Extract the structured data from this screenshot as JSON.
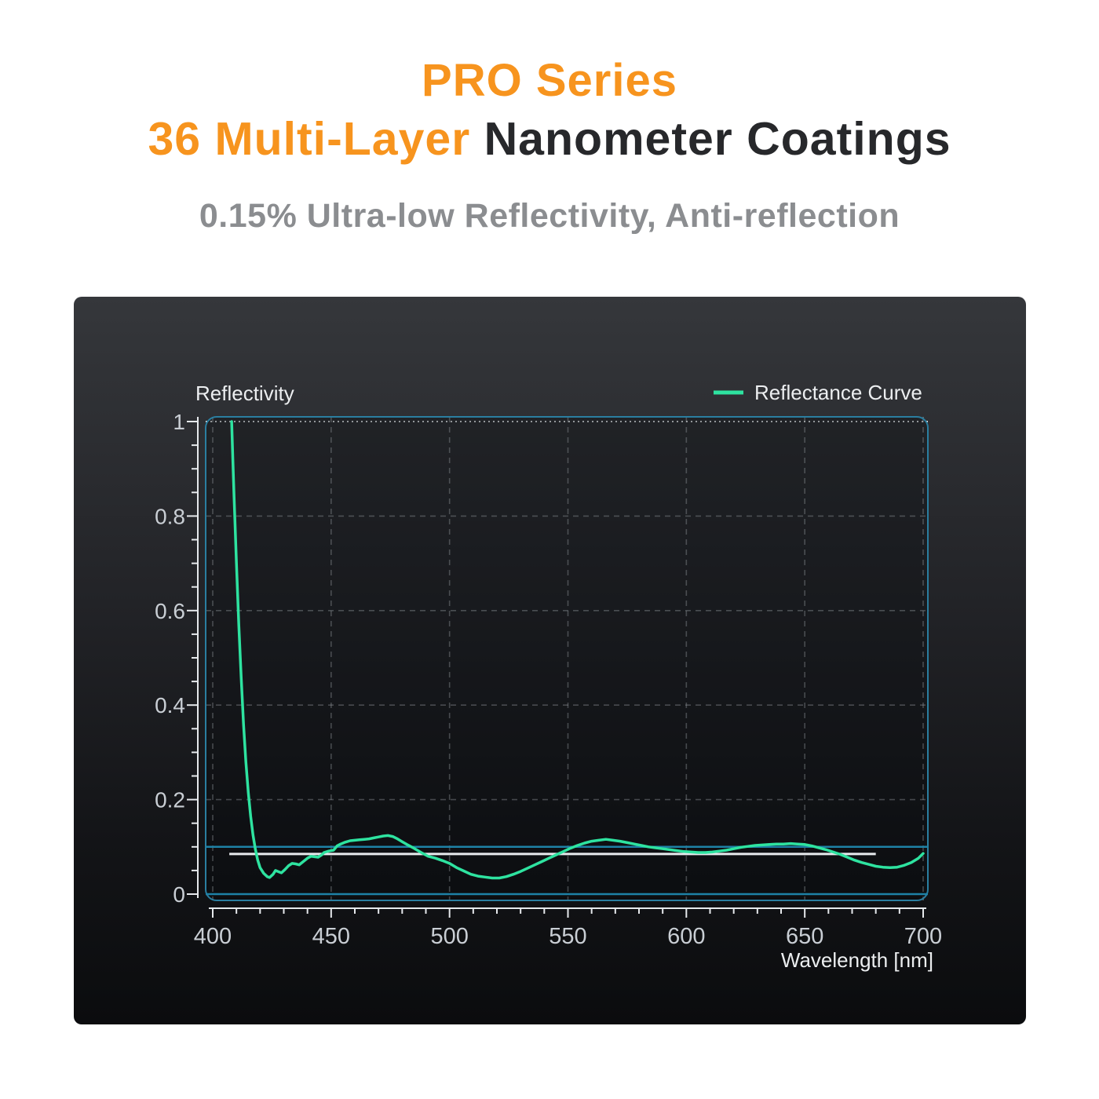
{
  "header": {
    "title_line1": "PRO Series",
    "title_line2_highlight": "36 Multi-Layer",
    "title_line2_rest": " Nanometer Coatings",
    "subtitle": "0.15% Ultra-low Reflectivity, Anti-reflection",
    "accent_color": "#f7941e",
    "dark_text_color": "#27282b",
    "subtitle_color": "#8b8d90"
  },
  "chart_data": {
    "type": "line",
    "title": "",
    "xlabel": "Wavelength [nm]",
    "ylabel": "Reflectivity",
    "xlim": [
      400,
      700
    ],
    "ylim": [
      0,
      1
    ],
    "grid": "dashed",
    "x_major_ticks": [
      400,
      450,
      500,
      550,
      600,
      650,
      700
    ],
    "x_minor_step": 10,
    "y_major_ticks": [
      0,
      0.2,
      0.4,
      0.6,
      0.8,
      1
    ],
    "y_tick_labels": [
      "0",
      "0.2",
      "0.4",
      "0.6",
      "0.8",
      "1"
    ],
    "y_minor_step": 0.05,
    "horizontal_dashed_gridlines": [
      0.2,
      0.4,
      0.6,
      0.8
    ],
    "dotted_gridlines": [
      1
    ],
    "legend": [
      {
        "label": "Reflectance Curve",
        "color": "#2ee3a0",
        "position": "top-right"
      }
    ],
    "colors": {
      "curve": "#2ee3a0",
      "frame": "#2a7ea0",
      "reference_cyan": "#1e81a6",
      "reference_white": "#e8ebee",
      "panel_top": "#35373b",
      "panel_bottom": "#0b0c0e"
    },
    "reference_lines": [
      {
        "y": 0.1,
        "color": "#1e81a6",
        "span": "frame"
      },
      {
        "y": 0.0,
        "color": "#1e81a6",
        "span": "frame"
      },
      {
        "y": 0.085,
        "color": "#e8ebee",
        "x_from": 407,
        "x_to": 680
      }
    ],
    "series": [
      {
        "name": "Reflectance Curve",
        "color": "#2ee3a0",
        "points": [
          [
            408,
            1.0
          ],
          [
            408.5,
            0.92
          ],
          [
            409,
            0.84
          ],
          [
            410,
            0.7
          ],
          [
            411,
            0.57
          ],
          [
            412,
            0.46
          ],
          [
            413,
            0.36
          ],
          [
            414,
            0.28
          ],
          [
            415,
            0.215
          ],
          [
            416,
            0.165
          ],
          [
            417,
            0.125
          ],
          [
            418,
            0.095
          ],
          [
            419,
            0.072
          ],
          [
            420,
            0.056
          ],
          [
            421.5,
            0.044
          ],
          [
            423,
            0.037
          ],
          [
            424,
            0.035
          ],
          [
            425.5,
            0.042
          ],
          [
            426.5,
            0.05
          ],
          [
            428,
            0.047
          ],
          [
            429,
            0.045
          ],
          [
            430.5,
            0.052
          ],
          [
            432,
            0.06
          ],
          [
            433.5,
            0.065
          ],
          [
            435,
            0.064
          ],
          [
            436.5,
            0.062
          ],
          [
            438,
            0.068
          ],
          [
            440,
            0.076
          ],
          [
            441.5,
            0.08
          ],
          [
            443,
            0.079
          ],
          [
            444.5,
            0.078
          ],
          [
            446,
            0.083
          ],
          [
            447,
            0.088
          ],
          [
            449,
            0.091
          ],
          [
            451,
            0.093
          ],
          [
            452.5,
            0.102
          ],
          [
            454,
            0.106
          ],
          [
            456,
            0.11
          ],
          [
            458,
            0.113
          ],
          [
            460,
            0.114
          ],
          [
            462,
            0.115
          ],
          [
            464,
            0.116
          ],
          [
            466,
            0.117
          ],
          [
            468,
            0.119
          ],
          [
            470,
            0.121
          ],
          [
            472,
            0.123
          ],
          [
            474,
            0.124
          ],
          [
            476,
            0.122
          ],
          [
            478,
            0.117
          ],
          [
            480,
            0.111
          ],
          [
            482,
            0.105
          ],
          [
            485,
            0.097
          ],
          [
            488,
            0.088
          ],
          [
            491,
            0.08
          ],
          [
            494,
            0.076
          ],
          [
            497,
            0.071
          ],
          [
            500,
            0.065
          ],
          [
            503,
            0.056
          ],
          [
            506,
            0.049
          ],
          [
            509,
            0.042
          ],
          [
            512,
            0.038
          ],
          [
            515,
            0.036
          ],
          [
            518,
            0.034
          ],
          [
            521,
            0.034
          ],
          [
            524,
            0.037
          ],
          [
            527,
            0.042
          ],
          [
            530,
            0.048
          ],
          [
            533,
            0.055
          ],
          [
            536,
            0.062
          ],
          [
            539,
            0.069
          ],
          [
            542,
            0.076
          ],
          [
            545,
            0.083
          ],
          [
            548,
            0.09
          ],
          [
            551,
            0.097
          ],
          [
            554,
            0.103
          ],
          [
            557,
            0.108
          ],
          [
            560,
            0.112
          ],
          [
            563,
            0.114
          ],
          [
            566,
            0.116
          ],
          [
            569,
            0.114
          ],
          [
            572,
            0.112
          ],
          [
            575,
            0.109
          ],
          [
            578,
            0.106
          ],
          [
            581,
            0.103
          ],
          [
            584,
            0.1
          ],
          [
            587,
            0.098
          ],
          [
            590,
            0.096
          ],
          [
            593,
            0.094
          ],
          [
            596,
            0.092
          ],
          [
            599,
            0.09
          ],
          [
            602,
            0.089
          ],
          [
            605,
            0.088
          ],
          [
            608,
            0.088
          ],
          [
            611,
            0.089
          ],
          [
            614,
            0.091
          ],
          [
            617,
            0.093
          ],
          [
            620,
            0.096
          ],
          [
            623,
            0.099
          ],
          [
            626,
            0.101
          ],
          [
            629,
            0.103
          ],
          [
            632,
            0.104
          ],
          [
            635,
            0.105
          ],
          [
            638,
            0.106
          ],
          [
            641,
            0.106
          ],
          [
            644,
            0.107
          ],
          [
            647,
            0.106
          ],
          [
            650,
            0.105
          ],
          [
            653,
            0.102
          ],
          [
            656,
            0.098
          ],
          [
            659,
            0.094
          ],
          [
            662,
            0.089
          ],
          [
            665,
            0.084
          ],
          [
            668,
            0.078
          ],
          [
            671,
            0.072
          ],
          [
            674,
            0.067
          ],
          [
            677,
            0.063
          ],
          [
            680,
            0.059
          ],
          [
            683,
            0.057
          ],
          [
            686,
            0.056
          ],
          [
            689,
            0.057
          ],
          [
            692,
            0.061
          ],
          [
            695,
            0.067
          ],
          [
            698,
            0.076
          ],
          [
            700,
            0.086
          ]
        ]
      }
    ]
  }
}
